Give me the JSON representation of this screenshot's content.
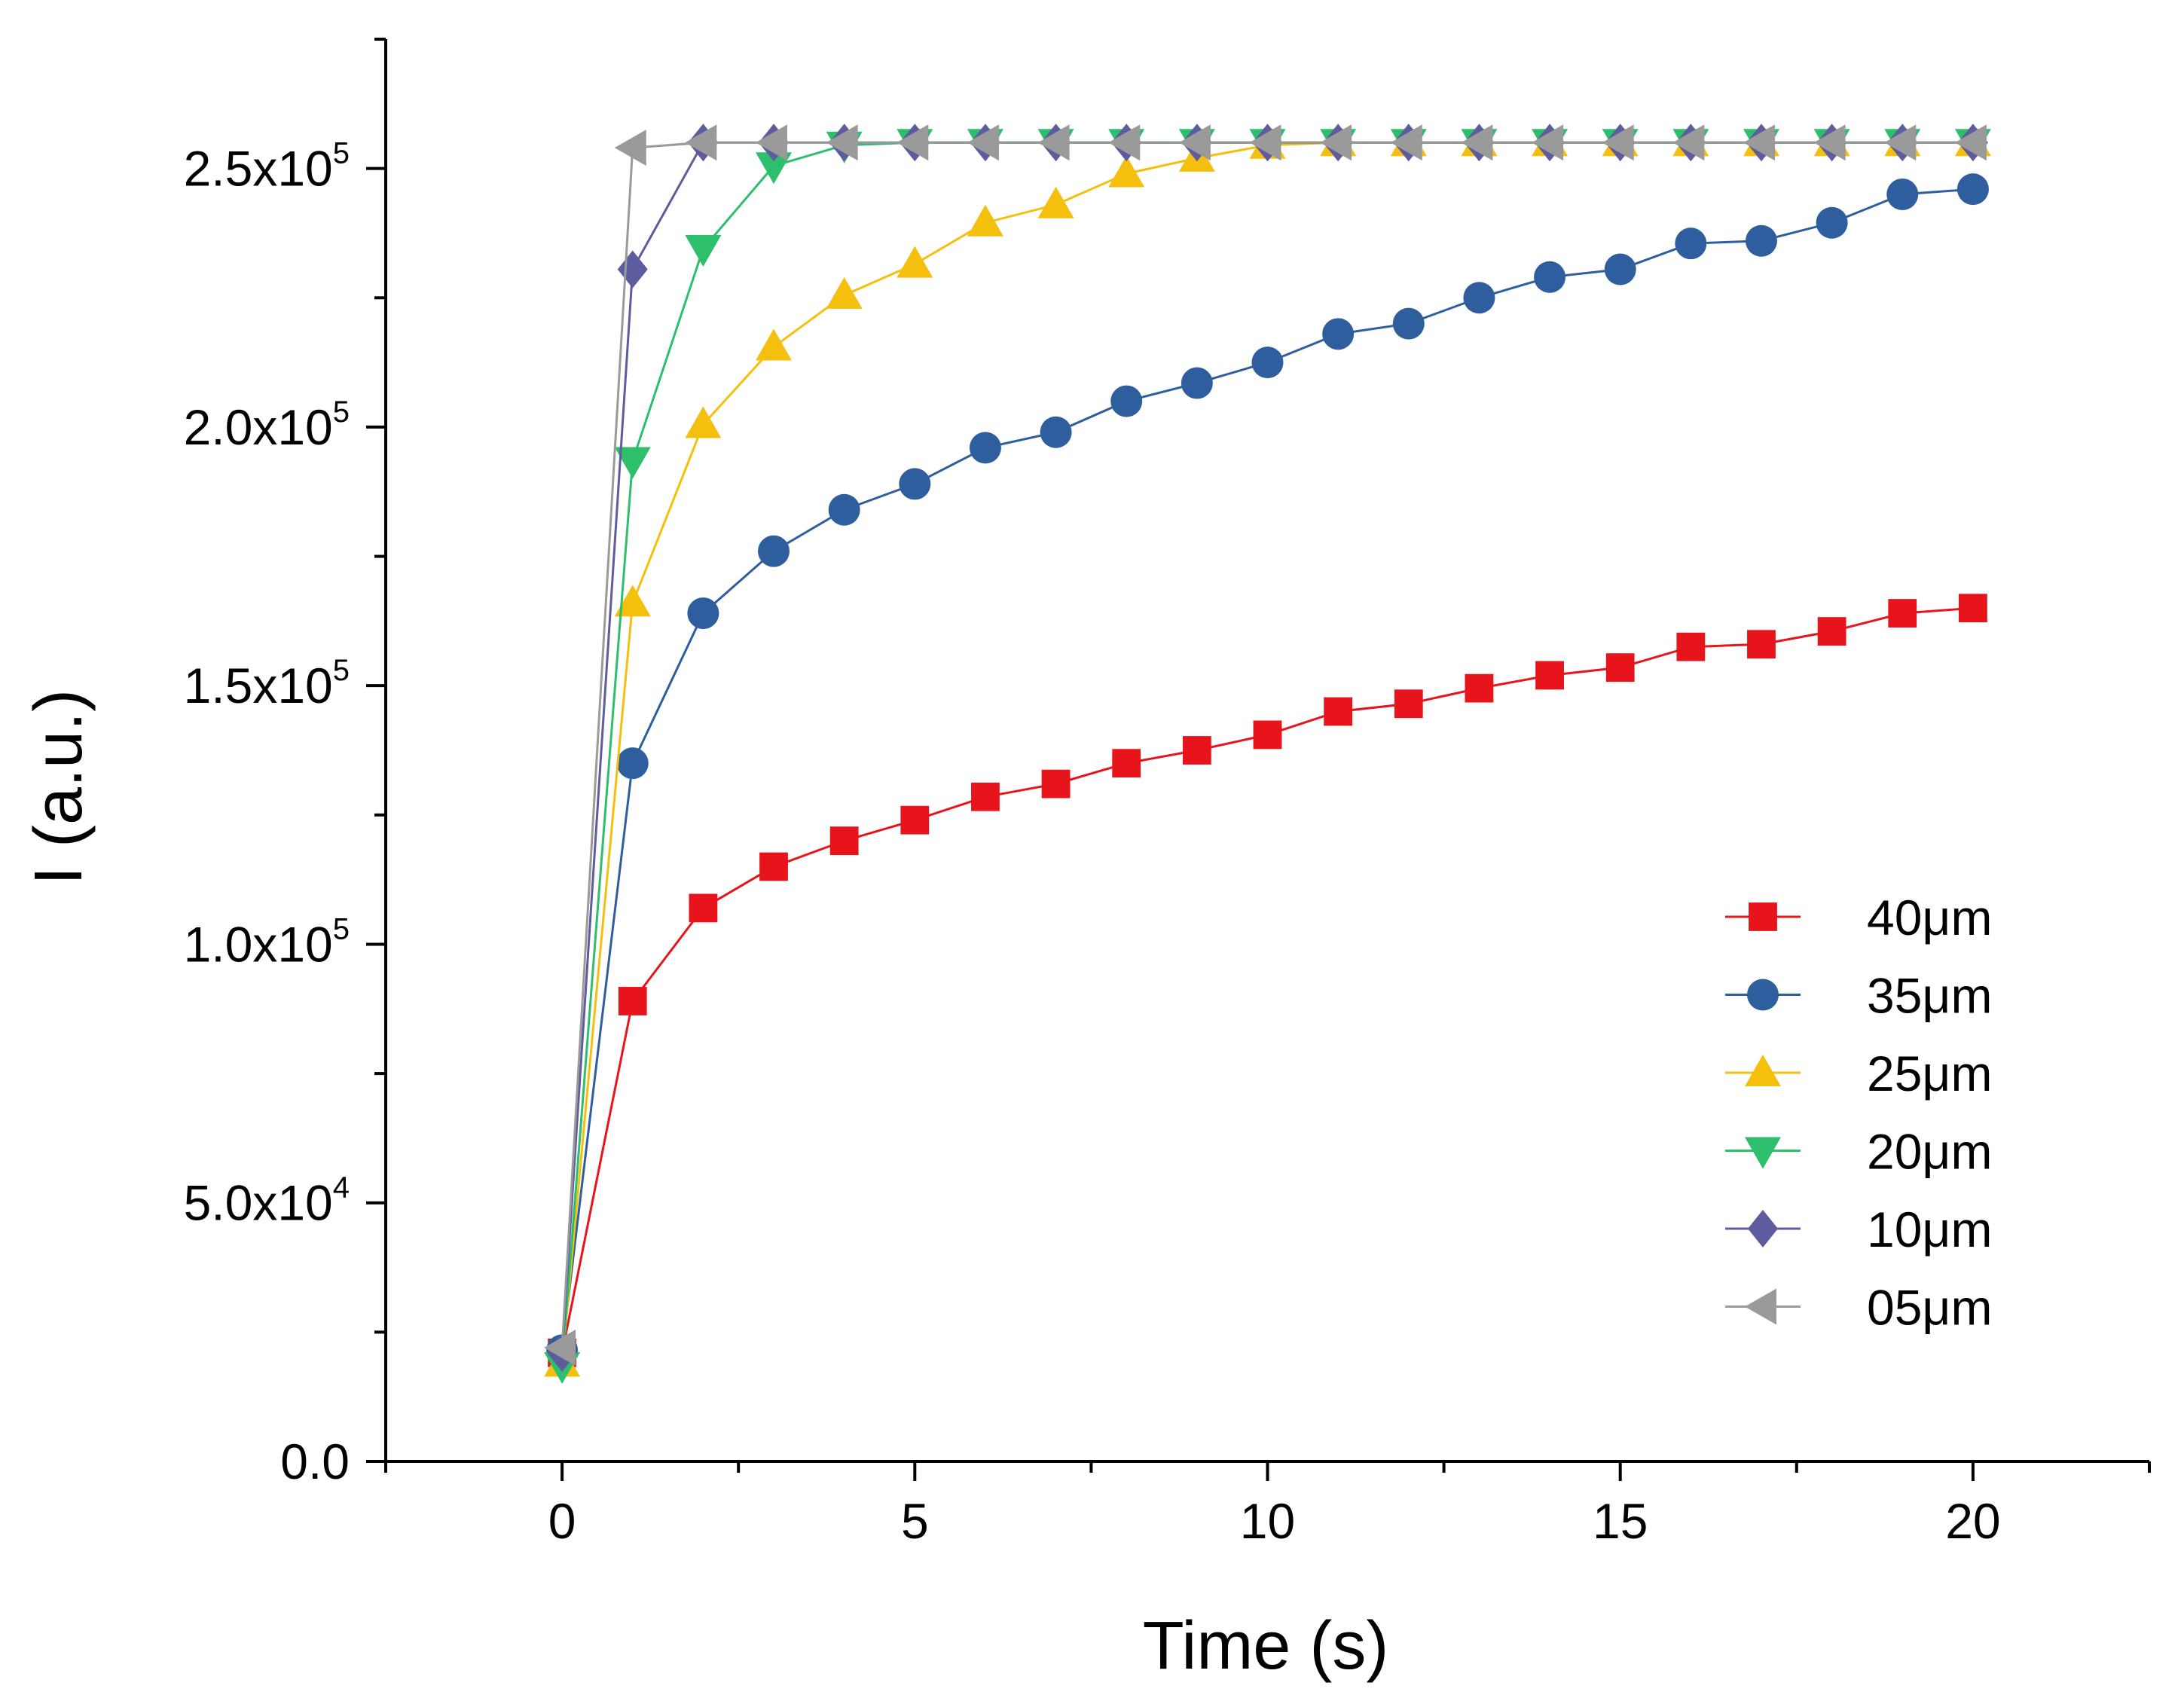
{
  "chart_data": {
    "type": "line",
    "title": "",
    "xlabel": "Time (s)",
    "ylabel": "I (a.u.)",
    "xlim": [
      -2.5,
      22.5
    ],
    "ylim": [
      0,
      275000
    ],
    "x_major_ticks": [
      0,
      5,
      10,
      15,
      20
    ],
    "x_tick_labels": [
      "0",
      "5",
      "10",
      "15",
      "20"
    ],
    "x_minor_ticks": [
      -2.5,
      2.5,
      7.5,
      12.5,
      17.5,
      22.5
    ],
    "y_major_ticks": [
      0,
      50000,
      100000,
      150000,
      200000,
      250000
    ],
    "y_tick_labels": [
      {
        "mantissa": "0.0",
        "exp": ""
      },
      {
        "mantissa": "5.0x10",
        "exp": "4"
      },
      {
        "mantissa": "1.0x10",
        "exp": "5"
      },
      {
        "mantissa": "1.5x10",
        "exp": "5"
      },
      {
        "mantissa": "2.0x10",
        "exp": "5"
      },
      {
        "mantissa": "2.5x10",
        "exp": "5"
      }
    ],
    "y_minor_ticks": [
      25000,
      75000,
      125000,
      175000,
      225000,
      275000
    ],
    "grid": false,
    "legend_position": "bottom-right",
    "x": [
      0,
      1,
      2,
      3,
      4,
      5,
      6,
      7,
      8,
      9,
      10,
      11,
      12,
      13,
      14,
      15,
      16,
      17,
      18,
      19,
      20
    ],
    "series": [
      {
        "name": "40μm",
        "color": "#e8141c",
        "marker": "square",
        "values": [
          21000,
          89000,
          107000,
          115000,
          120000,
          124000,
          128500,
          131000,
          135000,
          137500,
          140500,
          145000,
          146500,
          149500,
          152000,
          153500,
          157500,
          158000,
          160500,
          164000,
          165000
        ]
      },
      {
        "name": "35μm",
        "color": "#2e5e9e",
        "marker": "circle",
        "values": [
          21500,
          135000,
          164000,
          176000,
          184000,
          189000,
          196000,
          199000,
          205000,
          208500,
          212500,
          218000,
          220000,
          225000,
          229000,
          230500,
          235500,
          236000,
          239500,
          245000,
          246000
        ]
      },
      {
        "name": "25μm",
        "color": "#f5c00d",
        "marker": "triangle-up",
        "values": [
          19000,
          166000,
          200500,
          215500,
          225500,
          231500,
          239500,
          243000,
          249000,
          252000,
          254500,
          255000,
          255000,
          255000,
          255000,
          255000,
          255000,
          255000,
          255000,
          255000,
          255000
        ]
      },
      {
        "name": "20μm",
        "color": "#2dbf6c",
        "marker": "triangle-down",
        "values": [
          18500,
          193500,
          234500,
          250500,
          254500,
          255000,
          255000,
          255000,
          255000,
          255000,
          255000,
          255000,
          255000,
          255000,
          255000,
          255000,
          255000,
          255000,
          255000,
          255000,
          255000
        ]
      },
      {
        "name": "10μm",
        "color": "#5c5c9e",
        "marker": "diamond",
        "values": [
          21000,
          230500,
          255000,
          255000,
          255000,
          255000,
          255000,
          255000,
          255000,
          255000,
          255000,
          255000,
          255000,
          255000,
          255000,
          255000,
          255000,
          255000,
          255000,
          255000,
          255000
        ]
      },
      {
        "name": "05μm",
        "color": "#9a9a9a",
        "marker": "triangle-left",
        "values": [
          22000,
          254000,
          255000,
          255000,
          255000,
          255000,
          255000,
          255000,
          255000,
          255000,
          255000,
          255000,
          255000,
          255000,
          255000,
          255000,
          255000,
          255000,
          255000,
          255000,
          255000
        ]
      }
    ]
  }
}
